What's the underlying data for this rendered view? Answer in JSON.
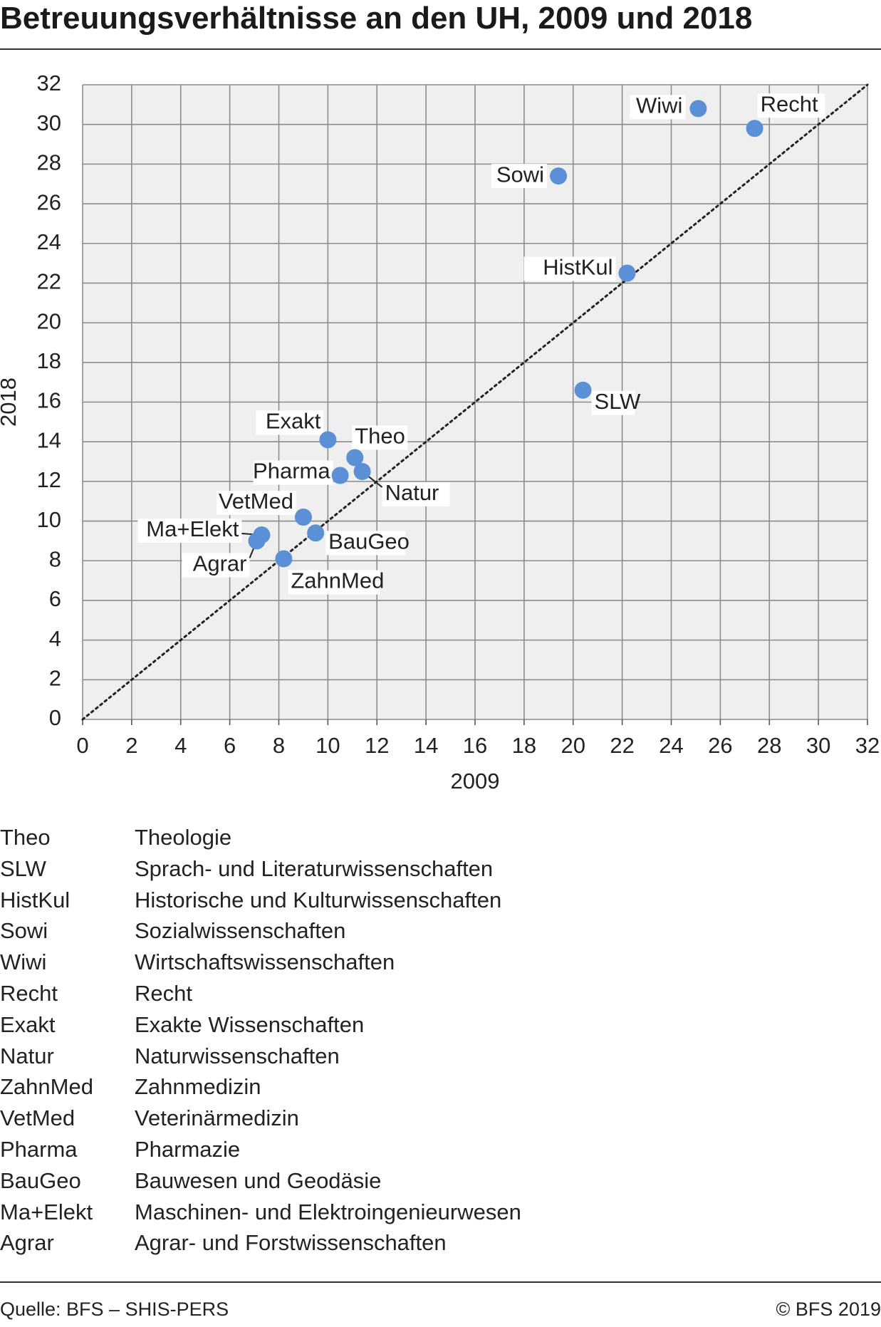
{
  "title": "Betreuungsverhältnisse an den UH, 2009 und 2018",
  "chart_data": {
    "type": "scatter",
    "title": "Betreuungsverhältnisse an den UH, 2009 und 2018",
    "xlabel": "2009",
    "ylabel": "2018",
    "xlim": [
      0,
      32
    ],
    "ylim": [
      0,
      32
    ],
    "x_ticks": [
      "0",
      "2",
      "4",
      "6",
      "8",
      "10",
      "12",
      "14",
      "16",
      "18",
      "20",
      "22",
      "24",
      "26",
      "28",
      "30",
      "32"
    ],
    "y_ticks": [
      "0",
      "2",
      "4",
      "6",
      "8",
      "10",
      "12",
      "14",
      "16",
      "18",
      "20",
      "22",
      "24",
      "26",
      "28",
      "30",
      "32"
    ],
    "grid": true,
    "reference_line": "diagonal y = x (dotted)",
    "point_color": "#5b8fd6",
    "points": [
      {
        "label": "Wiwi",
        "x": 25.1,
        "y": 30.8
      },
      {
        "label": "Recht",
        "x": 27.4,
        "y": 29.8
      },
      {
        "label": "Sowi",
        "x": 19.4,
        "y": 27.4
      },
      {
        "label": "HistKul",
        "x": 22.2,
        "y": 22.5
      },
      {
        "label": "SLW",
        "x": 20.4,
        "y": 16.6
      },
      {
        "label": "Exakt",
        "x": 10.0,
        "y": 14.1
      },
      {
        "label": "Theo",
        "x": 11.1,
        "y": 13.2
      },
      {
        "label": "Pharma",
        "x": 10.5,
        "y": 12.3
      },
      {
        "label": "Natur",
        "x": 11.4,
        "y": 12.5
      },
      {
        "label": "VetMed",
        "x": 9.0,
        "y": 10.2
      },
      {
        "label": "BauGeo",
        "x": 9.5,
        "y": 9.4
      },
      {
        "label": "Ma+Elekt",
        "x": 7.3,
        "y": 9.3
      },
      {
        "label": "Agrar",
        "x": 7.1,
        "y": 9.0
      },
      {
        "label": "ZahnMed",
        "x": 8.2,
        "y": 8.1
      }
    ]
  },
  "legend": [
    {
      "abbr": "Theo",
      "full": "Theologie"
    },
    {
      "abbr": "SLW",
      "full": "Sprach- und Literaturwissenschaften"
    },
    {
      "abbr": "HistKul",
      "full": "Historische und Kulturwissenschaften"
    },
    {
      "abbr": "Sowi",
      "full": "Sozialwissenschaften"
    },
    {
      "abbr": "Wiwi",
      "full": "Wirtschaftswissenschaften"
    },
    {
      "abbr": "Recht",
      "full": "Recht"
    },
    {
      "abbr": "Exakt",
      "full": "Exakte Wissenschaften"
    },
    {
      "abbr": "Natur",
      "full": "Naturwissenschaften"
    },
    {
      "abbr": "ZahnMed",
      "full": "Zahnmedizin"
    },
    {
      "abbr": "VetMed",
      "full": "Veterinärmedizin"
    },
    {
      "abbr": "Pharma",
      "full": "Pharmazie"
    },
    {
      "abbr": "BauGeo",
      "full": "Bauwesen und Geodäsie"
    },
    {
      "abbr": "Ma+Elekt",
      "full": "Maschinen- und Elektroingenieurwesen"
    },
    {
      "abbr": "Agrar",
      "full": "Agrar- und Forstwissenschaften"
    }
  ],
  "footer": {
    "source": "Quelle: BFS – SHIS-PERS",
    "copyright": "© BFS 2019"
  }
}
